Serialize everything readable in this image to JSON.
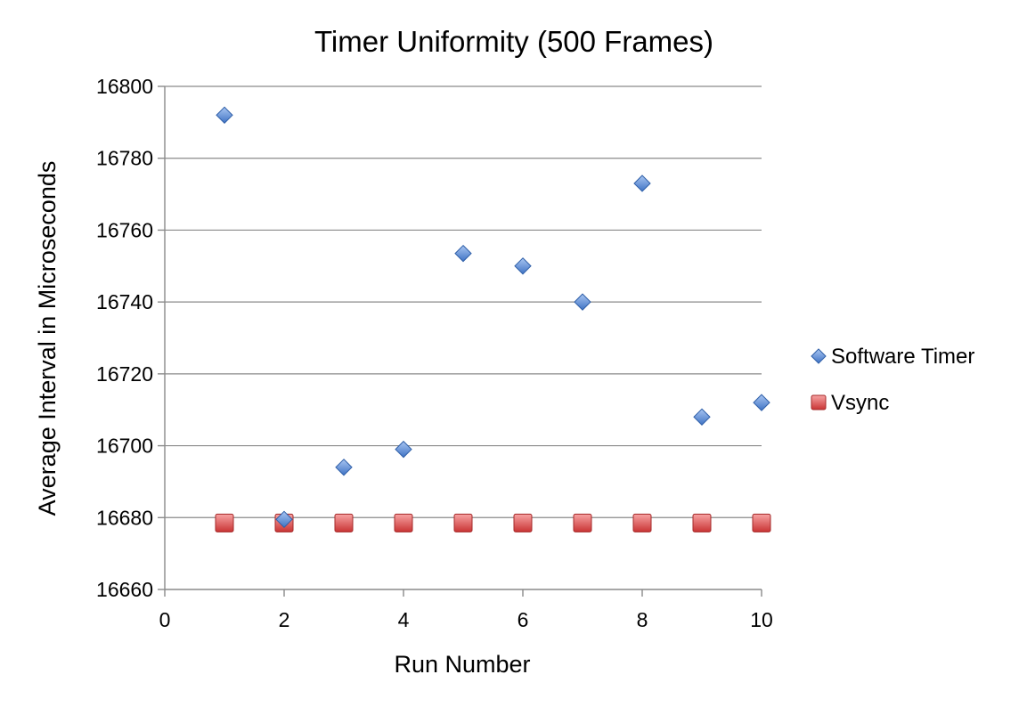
{
  "chart_data": {
    "type": "scatter",
    "title": "Timer Uniformity (500 Frames)",
    "xlabel": "Run Number",
    "ylabel": "Average Interval in Microseconds",
    "xlim": [
      0,
      10
    ],
    "ylim": [
      16660,
      16800
    ],
    "xticks": [
      0,
      2,
      4,
      6,
      8,
      10
    ],
    "yticks": [
      16660,
      16680,
      16700,
      16720,
      16740,
      16760,
      16780,
      16800
    ],
    "grid": "horizontal",
    "legend": "right",
    "series": [
      {
        "name": "Software Timer",
        "marker": "diamond",
        "color": "#5b8fd9",
        "x": [
          1,
          2,
          3,
          4,
          5,
          6,
          7,
          8,
          9,
          10
        ],
        "y": [
          16792,
          16679.5,
          16694,
          16699,
          16753.5,
          16750,
          16740,
          16773,
          16708,
          16712
        ]
      },
      {
        "name": "Vsync",
        "marker": "square",
        "color": "#e05252",
        "x": [
          1,
          2,
          3,
          4,
          5,
          6,
          7,
          8,
          9,
          10
        ],
        "y": [
          16678.5,
          16678.5,
          16678.5,
          16678.5,
          16678.5,
          16678.5,
          16678.5,
          16678.5,
          16678.5,
          16678.5
        ]
      }
    ]
  }
}
